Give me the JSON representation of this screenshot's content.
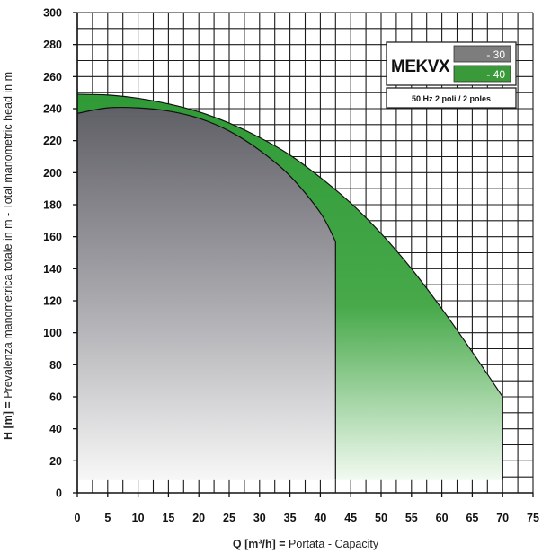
{
  "chart_data": {
    "type": "area",
    "xlabel_bold": "Q [m³/h] =",
    "xlabel_rest": " Portata  -  Capacity",
    "ylabel_bold": "H [m] =",
    "ylabel_rest": " Prevalenza manometrica totale in m  -  Total manometric head in m",
    "xlim": [
      0,
      75
    ],
    "ylim": [
      0,
      300
    ],
    "x_ticks": [
      "0",
      "5",
      "10",
      "15",
      "20",
      "25",
      "30",
      "35",
      "40",
      "45",
      "50",
      "55",
      "60",
      "65",
      "70",
      "75"
    ],
    "y_ticks": [
      "0",
      "20",
      "40",
      "60",
      "80",
      "100",
      "120",
      "140",
      "160",
      "180",
      "200",
      "220",
      "240",
      "260",
      "280",
      "300"
    ],
    "grid": true,
    "legend": {
      "model": "MEKVX",
      "entries": [
        {
          "label": "- 30",
          "color": "#7d7d7d"
        },
        {
          "label": "- 40",
          "color": "#3a9a3a"
        }
      ],
      "frequency": "50 Hz 2 poli / 2 poles",
      "placement": "top-right"
    },
    "series": [
      {
        "label": "- 40",
        "color": "#3a9a3a",
        "x": [
          0,
          5,
          10,
          15,
          20,
          25,
          30,
          35,
          40,
          45,
          50,
          55,
          60,
          65,
          70
        ],
        "y": [
          249,
          248.5,
          246.5,
          243,
          238,
          231,
          222,
          211,
          197,
          181,
          162,
          140,
          115,
          88,
          60
        ]
      },
      {
        "label": "- 30",
        "color": "#7d7d7d",
        "x": [
          0,
          5,
          10,
          15,
          20,
          25,
          30,
          35,
          40,
          42.5
        ],
        "y": [
          237,
          240.5,
          240.5,
          238.5,
          234,
          226,
          214,
          198,
          175,
          157
        ]
      }
    ]
  }
}
